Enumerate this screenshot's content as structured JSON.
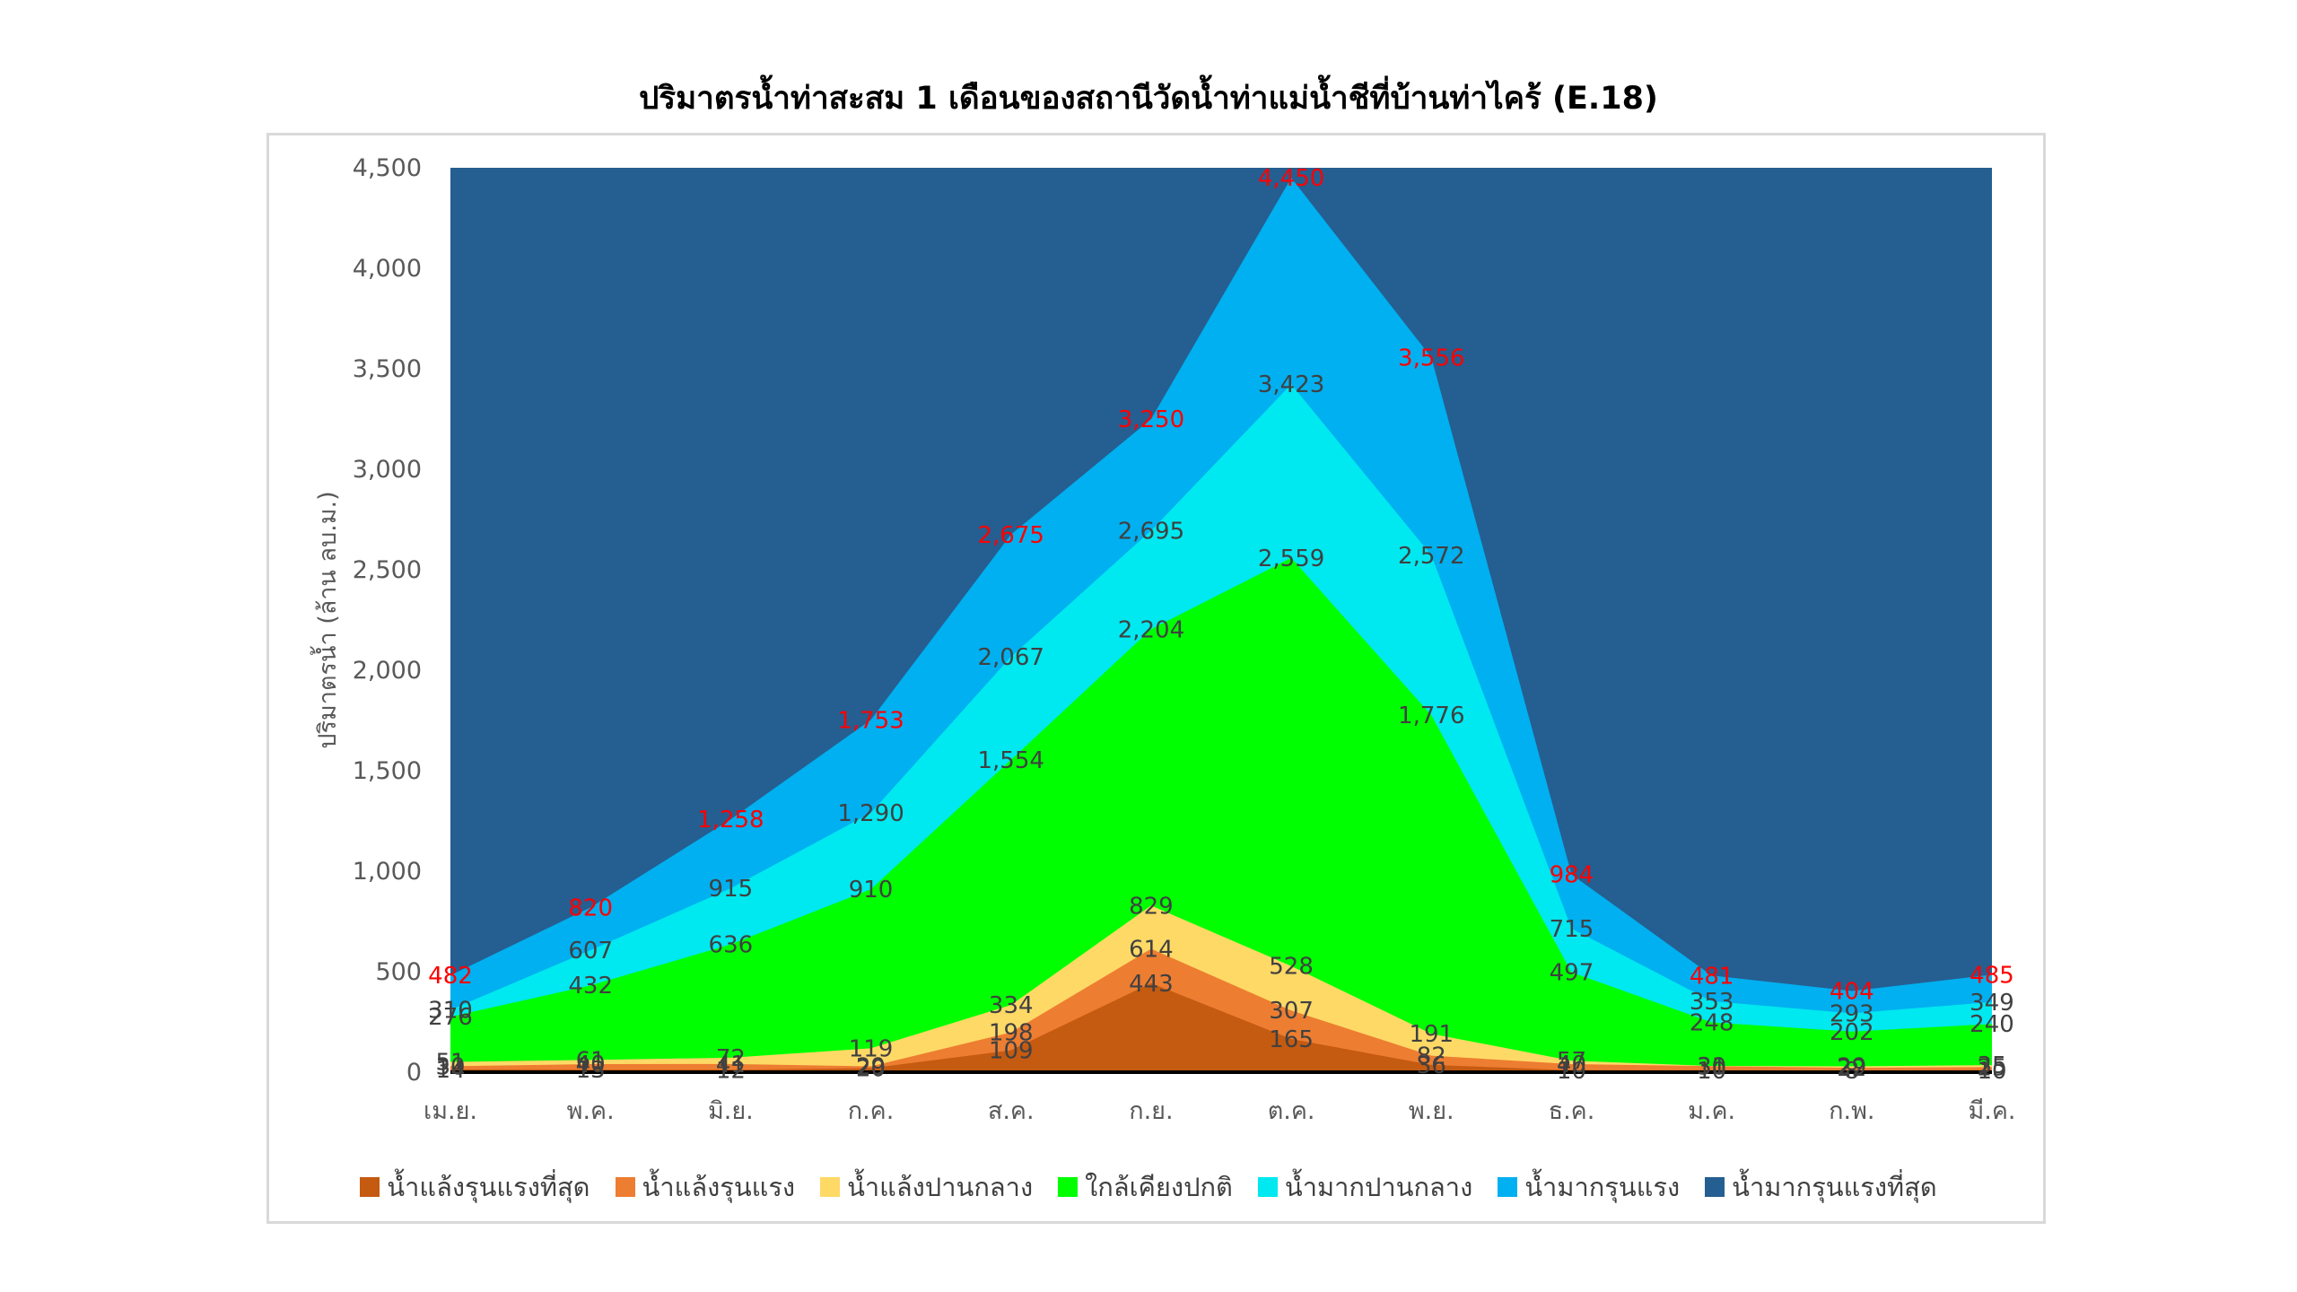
{
  "chart_data": {
    "type": "area",
    "title": "ปริมาตรน้ำท่าสะสม 1 เดือนของสถานีวัดน้ำท่าแม่น้ำชีที่บ้านท่าไคร้ (E.18)",
    "xlabel": "",
    "ylabel": "ปริมาตรน้ำ (ล้าน ลบ.ม.)",
    "ylim": [
      0,
      4500
    ],
    "yticks": [
      "0",
      "500",
      "1,000",
      "1,500",
      "2,000",
      "2,500",
      "3,000",
      "3,500",
      "4,000",
      "4,500"
    ],
    "categories": [
      "เม.ย.",
      "พ.ค.",
      "มิ.ย.",
      "ก.ค.",
      "ส.ค.",
      "ก.ย.",
      "ต.ค.",
      "พ.ย.",
      "ธ.ค.",
      "ม.ค.",
      "ก.พ.",
      "มี.ค."
    ],
    "legend_position": "bottom",
    "grid": false,
    "series": [
      {
        "name": "น้ำแล้งรุนแรงที่สุด",
        "color": "#c55a11",
        "values": [
          14,
          13,
          12,
          20,
          109,
          443,
          165,
          36,
          10,
          10,
          8,
          10
        ]
      },
      {
        "name": "น้ำแล้งรุนแรง",
        "color": "#ed7d31",
        "values": [
          30,
          40,
          41,
          29,
          198,
          614,
          307,
          82,
          40,
          30,
          22,
          25
        ]
      },
      {
        "name": "น้ำแล้งปานกลาง",
        "color": "#ffd966",
        "values": [
          51,
          61,
          72,
          119,
          334,
          829,
          528,
          191,
          57,
          31,
          29,
          35
        ]
      },
      {
        "name": "ใกล้เคียงปกติ",
        "color": "#00ff00",
        "values": [
          276,
          432,
          636,
          910,
          1554,
          2204,
          2559,
          1776,
          497,
          248,
          202,
          240
        ]
      },
      {
        "name": "น้ำมากปานกลาง",
        "color": "#00e8f0",
        "values": [
          310,
          607,
          915,
          1290,
          2067,
          2695,
          3423,
          2572,
          715,
          353,
          293,
          349
        ]
      },
      {
        "name": "น้ำมากรุนแรง",
        "color": "#00b0f0",
        "values": [
          482,
          820,
          1258,
          1753,
          2675,
          3250,
          4450,
          3556,
          984,
          481,
          404,
          485
        ]
      },
      {
        "name": "น้ำมากรุนแรงที่สุด",
        "color": "#255e91",
        "values": [
          4500,
          4500,
          4500,
          4500,
          4500,
          4500,
          4500,
          4500,
          4500,
          4500,
          4500,
          4500
        ]
      }
    ],
    "data_labels": [
      {
        "series": 0,
        "color": "#404040",
        "text": [
          "14",
          "13",
          "12",
          "20",
          "109",
          "443",
          "165",
          "36",
          "10",
          "10",
          "8",
          "10"
        ]
      },
      {
        "series": 1,
        "color": "#404040",
        "text": [
          "30",
          "40",
          "41",
          "29",
          "198",
          "614",
          "307",
          "82",
          "40",
          "30",
          "22",
          "25"
        ]
      },
      {
        "series": 2,
        "color": "#404040",
        "text": [
          "51",
          "61",
          "72",
          "119",
          "334",
          "829",
          "528",
          "191",
          "57",
          "31",
          "29",
          "35"
        ]
      },
      {
        "series": 3,
        "color": "#404040",
        "text": [
          "276",
          "432",
          "636",
          "910",
          "1,554",
          "2,204",
          "2,559",
          "1,776",
          "497",
          "248",
          "202",
          "240"
        ]
      },
      {
        "series": 4,
        "color": "#404040",
        "text": [
          "310",
          "607",
          "915",
          "1,290",
          "2,067",
          "2,695",
          "3,423",
          "2,572",
          "715",
          "353",
          "293",
          "349"
        ]
      },
      {
        "series": 5,
        "color": "#ff0000",
        "text": [
          "482",
          "820",
          "1,258",
          "1,753",
          "2,675",
          "3,250",
          "4,450",
          "3,556",
          "984",
          "481",
          "404",
          "485"
        ]
      }
    ]
  }
}
